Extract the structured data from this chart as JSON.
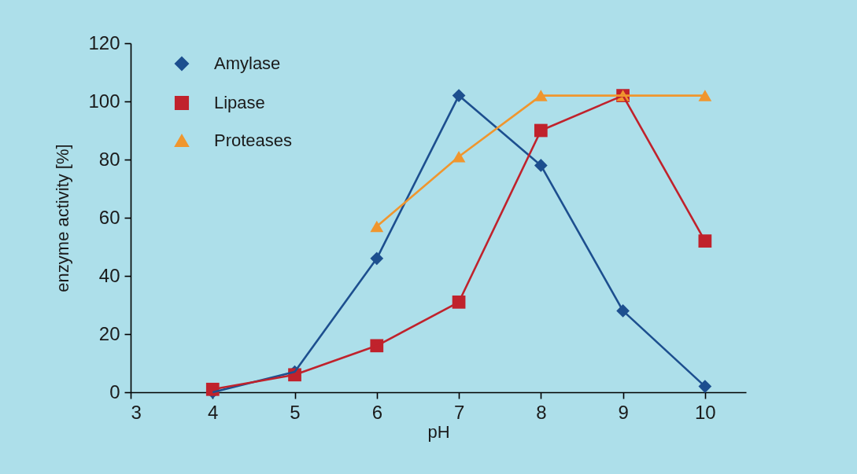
{
  "chart_data": {
    "type": "line",
    "xlabel": "pH",
    "ylabel": "enzyme activity [%]",
    "x": [
      4,
      5,
      6,
      7,
      8,
      9,
      10
    ],
    "series": [
      {
        "name": "Amylase",
        "color": "#1d4f8f",
        "marker": "diamond",
        "values": [
          0,
          7,
          46,
          102,
          78,
          28,
          2
        ]
      },
      {
        "name": "Lipase",
        "color": "#c0222c",
        "marker": "square",
        "values": [
          1,
          6,
          16,
          31,
          90,
          102,
          52
        ]
      },
      {
        "name": "Proteases",
        "color": "#f0962e",
        "marker": "triangle",
        "x": [
          6,
          7,
          8,
          9,
          10
        ],
        "values": [
          57,
          81,
          102,
          102,
          102
        ]
      }
    ],
    "xlim": [
      3,
      10.5
    ],
    "xticks": [
      3,
      4,
      5,
      6,
      7,
      8,
      9,
      10
    ],
    "ylim": [
      0,
      120
    ],
    "yticks": [
      0,
      20,
      40,
      60,
      80,
      100,
      120
    ],
    "grid": false,
    "legend": "top left"
  }
}
